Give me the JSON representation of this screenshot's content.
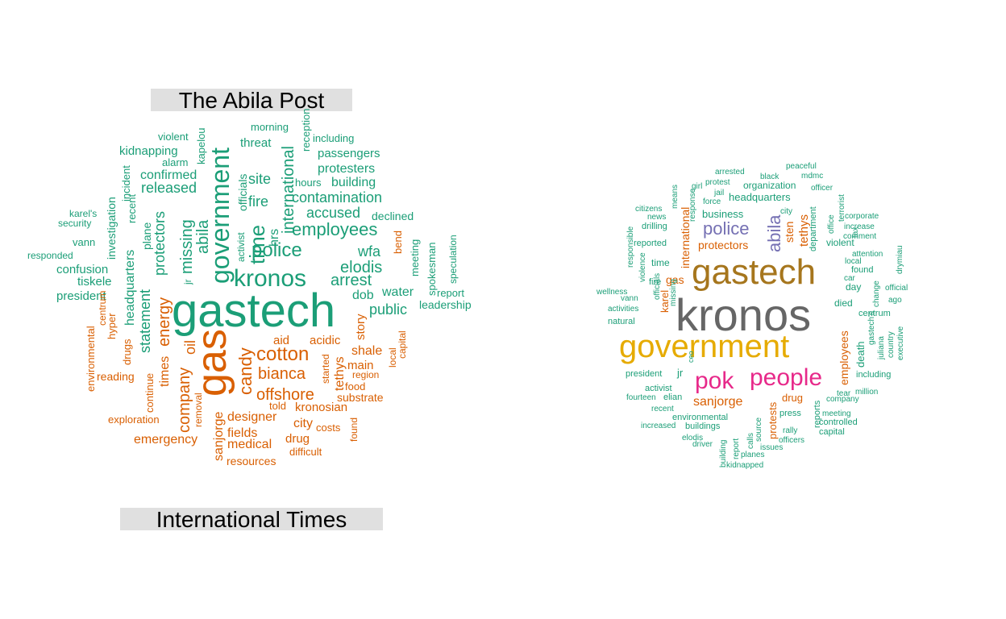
{
  "titles": {
    "left_top": "The Abila Post",
    "left_bottom": "International Times"
  },
  "colors": {
    "teal": "#1b9e77",
    "orange": "#d95f02",
    "purple": "#7570b3",
    "pink": "#e7298a",
    "olive": "#a6761d",
    "gold": "#e6ab02",
    "gray": "#666666",
    "label_bg": "#e0e0e0"
  },
  "cloud_left": [
    {
      "t": "gastech",
      "c": "teal"
    },
    {
      "t": "gas",
      "c": "orange"
    },
    {
      "t": "government",
      "c": "teal"
    },
    {
      "t": "kronos",
      "c": "teal"
    },
    {
      "t": "time",
      "c": "teal"
    },
    {
      "t": "police",
      "c": "teal"
    },
    {
      "t": "cotton",
      "c": "orange"
    },
    {
      "t": "candy",
      "c": "orange"
    },
    {
      "t": "employees",
      "c": "teal"
    },
    {
      "t": "abila",
      "c": "teal"
    },
    {
      "t": "missing",
      "c": "teal"
    },
    {
      "t": "international",
      "c": "teal"
    },
    {
      "t": "energy",
      "c": "orange"
    },
    {
      "t": "company",
      "c": "orange"
    },
    {
      "t": "bianca",
      "c": "orange"
    },
    {
      "t": "offshore",
      "c": "orange"
    },
    {
      "t": "arrest",
      "c": "teal"
    },
    {
      "t": "elodis",
      "c": "teal"
    },
    {
      "t": "accused",
      "c": "teal"
    },
    {
      "t": "contamination",
      "c": "teal"
    },
    {
      "t": "released",
      "c": "teal"
    },
    {
      "t": "fire",
      "c": "teal"
    },
    {
      "t": "site",
      "c": "teal"
    },
    {
      "t": "statement",
      "c": "teal"
    },
    {
      "t": "oil",
      "c": "orange"
    },
    {
      "t": "wfa",
      "c": "teal"
    },
    {
      "t": "public",
      "c": "teal"
    },
    {
      "t": "protectors",
      "c": "teal"
    },
    {
      "t": "headquarters",
      "c": "teal"
    },
    {
      "t": "tethys",
      "c": "orange"
    },
    {
      "t": "designer",
      "c": "orange"
    },
    {
      "t": "fields",
      "c": "orange"
    },
    {
      "t": "medical",
      "c": "orange"
    },
    {
      "t": "emergency",
      "c": "orange"
    },
    {
      "t": "sanjorge",
      "c": "orange"
    },
    {
      "t": "officials",
      "c": "teal"
    },
    {
      "t": "hrs",
      "c": "teal"
    },
    {
      "t": "water",
      "c": "teal"
    },
    {
      "t": "dob",
      "c": "teal"
    },
    {
      "t": "shale",
      "c": "orange"
    },
    {
      "t": "building",
      "c": "teal"
    },
    {
      "t": "protesters",
      "c": "teal"
    },
    {
      "t": "passengers",
      "c": "teal"
    },
    {
      "t": "confirmed",
      "c": "teal"
    },
    {
      "t": "kidnapping",
      "c": "teal"
    },
    {
      "t": "threat",
      "c": "teal"
    },
    {
      "t": "tiskele",
      "c": "teal"
    },
    {
      "t": "president",
      "c": "teal"
    },
    {
      "t": "confusion",
      "c": "teal"
    },
    {
      "t": "times",
      "c": "orange"
    },
    {
      "t": "city",
      "c": "orange"
    },
    {
      "t": "drug",
      "c": "orange"
    },
    {
      "t": "kronosian",
      "c": "orange"
    },
    {
      "t": "main",
      "c": "orange"
    },
    {
      "t": "aid",
      "c": "orange"
    },
    {
      "t": "acidic",
      "c": "orange"
    },
    {
      "t": "story",
      "c": "orange"
    },
    {
      "t": "substrate",
      "c": "orange"
    },
    {
      "t": "resources",
      "c": "orange"
    },
    {
      "t": "declined",
      "c": "teal"
    },
    {
      "t": "plane",
      "c": "teal"
    },
    {
      "t": "investigation",
      "c": "teal"
    },
    {
      "t": "morning",
      "c": "teal"
    },
    {
      "t": "including",
      "c": "teal"
    },
    {
      "t": "hours",
      "c": "teal"
    },
    {
      "t": "reception",
      "c": "teal"
    },
    {
      "t": "kapelou",
      "c": "teal"
    },
    {
      "t": "violent",
      "c": "teal"
    },
    {
      "t": "alarm",
      "c": "teal"
    },
    {
      "t": "incident",
      "c": "teal"
    },
    {
      "t": "recent",
      "c": "teal"
    },
    {
      "t": "karel's",
      "c": "teal"
    },
    {
      "t": "security",
      "c": "teal"
    },
    {
      "t": "vann",
      "c": "teal"
    },
    {
      "t": "responded",
      "c": "teal"
    },
    {
      "t": "activist",
      "c": "teal"
    },
    {
      "t": "jr",
      "c": "teal"
    },
    {
      "t": "bend",
      "c": "orange"
    },
    {
      "t": "meeting",
      "c": "teal"
    },
    {
      "t": "spokesman",
      "c": "teal"
    },
    {
      "t": "speculation",
      "c": "teal"
    },
    {
      "t": "report",
      "c": "teal"
    },
    {
      "t": "leadership",
      "c": "teal"
    },
    {
      "t": "drugs",
      "c": "orange"
    },
    {
      "t": "hyper",
      "c": "orange"
    },
    {
      "t": "centrum",
      "c": "orange"
    },
    {
      "t": "environmental",
      "c": "orange"
    },
    {
      "t": "reading",
      "c": "orange"
    },
    {
      "t": "continue",
      "c": "orange"
    },
    {
      "t": "exploration",
      "c": "orange"
    },
    {
      "t": "removal",
      "c": "orange"
    },
    {
      "t": "told",
      "c": "orange"
    },
    {
      "t": "started",
      "c": "orange"
    },
    {
      "t": "region",
      "c": "orange"
    },
    {
      "t": "food",
      "c": "orange"
    },
    {
      "t": "local",
      "c": "orange"
    },
    {
      "t": "capital",
      "c": "orange"
    },
    {
      "t": "costs",
      "c": "orange"
    },
    {
      "t": "found",
      "c": "orange"
    },
    {
      "t": "difficult",
      "c": "orange"
    }
  ],
  "cloud_right": [
    {
      "t": "kronos",
      "c": "gray"
    },
    {
      "t": "gastech",
      "c": "olive"
    },
    {
      "t": "government",
      "c": "gold"
    },
    {
      "t": "pok",
      "c": "pink"
    },
    {
      "t": "people",
      "c": "pink"
    },
    {
      "t": "police",
      "c": "purple"
    },
    {
      "t": "abila",
      "c": "purple"
    },
    {
      "t": "sanjorge",
      "c": "orange"
    },
    {
      "t": "protectors",
      "c": "orange"
    },
    {
      "t": "international",
      "c": "orange"
    },
    {
      "t": "gas",
      "c": "orange"
    },
    {
      "t": "tethys",
      "c": "orange"
    },
    {
      "t": "sten",
      "c": "orange"
    },
    {
      "t": "employees",
      "c": "orange"
    },
    {
      "t": "karel",
      "c": "orange"
    },
    {
      "t": "protests",
      "c": "orange"
    },
    {
      "t": "drug",
      "c": "orange"
    },
    {
      "t": "death",
      "c": "teal"
    },
    {
      "t": "headquarters",
      "c": "teal"
    },
    {
      "t": "business",
      "c": "teal"
    },
    {
      "t": "organization",
      "c": "teal"
    },
    {
      "t": "violent",
      "c": "teal"
    },
    {
      "t": "died",
      "c": "teal"
    },
    {
      "t": "day",
      "c": "teal"
    },
    {
      "t": "time",
      "c": "teal"
    },
    {
      "t": "reported",
      "c": "teal"
    },
    {
      "t": "fire",
      "c": "teal"
    },
    {
      "t": "jr",
      "c": "teal"
    },
    {
      "t": "president",
      "c": "teal"
    },
    {
      "t": "activist",
      "c": "teal"
    },
    {
      "t": "elian",
      "c": "teal"
    },
    {
      "t": "fourteen",
      "c": "teal"
    },
    {
      "t": "recent",
      "c": "teal"
    },
    {
      "t": "environmental",
      "c": "teal"
    },
    {
      "t": "buildings",
      "c": "teal"
    },
    {
      "t": "increased",
      "c": "teal"
    },
    {
      "t": "elodis",
      "c": "teal"
    },
    {
      "t": "driver",
      "c": "teal"
    },
    {
      "t": "building",
      "c": "teal"
    },
    {
      "t": "report",
      "c": "teal"
    },
    {
      "t": "calls",
      "c": "teal"
    },
    {
      "t": "source",
      "c": "teal"
    },
    {
      "t": "planes",
      "c": "teal"
    },
    {
      "t": "kidnapped",
      "c": "teal"
    },
    {
      "t": "issues",
      "c": "teal"
    },
    {
      "t": "officers",
      "c": "teal"
    },
    {
      "t": "rally",
      "c": "teal"
    },
    {
      "t": "press",
      "c": "teal"
    },
    {
      "t": "reports",
      "c": "teal"
    },
    {
      "t": "controlled",
      "c": "teal"
    },
    {
      "t": "capital",
      "c": "teal"
    },
    {
      "t": "company",
      "c": "teal"
    },
    {
      "t": "meeting",
      "c": "teal"
    },
    {
      "t": "tear",
      "c": "teal"
    },
    {
      "t": "million",
      "c": "teal"
    },
    {
      "t": "including",
      "c": "teal"
    },
    {
      "t": "executive",
      "c": "teal"
    },
    {
      "t": "country",
      "c": "teal"
    },
    {
      "t": "juliana",
      "c": "teal"
    },
    {
      "t": "gastech's",
      "c": "teal"
    },
    {
      "t": "centrum",
      "c": "teal"
    },
    {
      "t": "ago",
      "c": "teal"
    },
    {
      "t": "official",
      "c": "teal"
    },
    {
      "t": "change",
      "c": "teal"
    },
    {
      "t": "found",
      "c": "teal"
    },
    {
      "t": "car",
      "c": "teal"
    },
    {
      "t": "local",
      "c": "teal"
    },
    {
      "t": "attention",
      "c": "teal"
    },
    {
      "t": "drymiau",
      "c": "teal"
    },
    {
      "t": "increase",
      "c": "teal"
    },
    {
      "t": "comment",
      "c": "teal"
    },
    {
      "t": "corporate",
      "c": "teal"
    },
    {
      "t": "tax",
      "c": "teal"
    },
    {
      "t": "office",
      "c": "teal"
    },
    {
      "t": "terrorist",
      "c": "teal"
    },
    {
      "t": "department",
      "c": "teal"
    },
    {
      "t": "officer",
      "c": "teal"
    },
    {
      "t": "mdmc",
      "c": "teal"
    },
    {
      "t": "peaceful",
      "c": "teal"
    },
    {
      "t": "black",
      "c": "teal"
    },
    {
      "t": "arrested",
      "c": "teal"
    },
    {
      "t": "protest",
      "c": "teal"
    },
    {
      "t": "girl",
      "c": "teal"
    },
    {
      "t": "jail",
      "c": "teal"
    },
    {
      "t": "force",
      "c": "teal"
    },
    {
      "t": "city",
      "c": "teal"
    },
    {
      "t": "citizens",
      "c": "teal"
    },
    {
      "t": "news",
      "c": "teal"
    },
    {
      "t": "means",
      "c": "teal"
    },
    {
      "t": "response",
      "c": "teal"
    },
    {
      "t": "drilling",
      "c": "teal"
    },
    {
      "t": "responsible",
      "c": "teal"
    },
    {
      "t": "violence",
      "c": "teal"
    },
    {
      "t": "officials",
      "c": "teal"
    },
    {
      "t": "wellness",
      "c": "teal"
    },
    {
      "t": "vann",
      "c": "teal"
    },
    {
      "t": "activities",
      "c": "teal"
    },
    {
      "t": "natural",
      "c": "teal"
    },
    {
      "t": "missing",
      "c": "teal"
    },
    {
      "t": "ceo",
      "c": "teal"
    }
  ]
}
